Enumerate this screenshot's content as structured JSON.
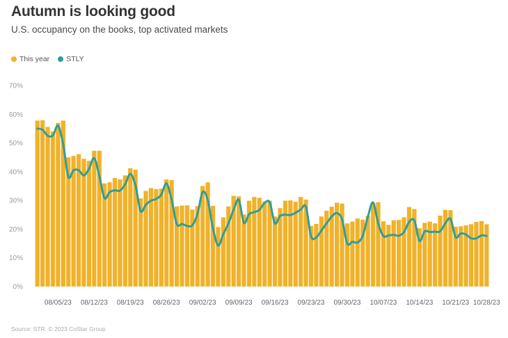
{
  "title": "Autumn is looking good",
  "subtitle": "U.S. occupancy on the books, top activated markets",
  "source": "Source: STR. © 2023 CoStar Group",
  "colors": {
    "this_year": "#F0B22A",
    "stly": "#2E9E9A"
  },
  "chart_data": {
    "type": "bar",
    "ylim": [
      0,
      70
    ],
    "yticks": [
      "0%",
      "10%",
      "20%",
      "30%",
      "40%",
      "50%",
      "60%",
      "70%"
    ],
    "xtick_labels": [
      "08/05/23",
      "08/12/23",
      "08/19/23",
      "08/26/23",
      "09/02/23",
      "09/09/23",
      "09/16/23",
      "09/23/23",
      "09/30/23",
      "10/07/23",
      "10/14/23",
      "10/21/23",
      "10/28/23"
    ],
    "legend_position": "top-left",
    "grid": false,
    "series": [
      {
        "name": "This year",
        "type": "bar",
        "values": [
          57.8,
          57.9,
          55.6,
          54.0,
          57.0,
          57.8,
          45.0,
          45.5,
          46.1,
          44.5,
          43.8,
          47.3,
          47.3,
          35.9,
          36.3,
          37.8,
          37.3,
          38.7,
          41.2,
          40.7,
          30.7,
          33.3,
          34.3,
          33.9,
          34.1,
          37.3,
          37.1,
          27.9,
          28.2,
          28.3,
          26.8,
          28.0,
          35.0,
          36.3,
          28.1,
          20.7,
          24.1,
          27.9,
          31.6,
          31.4,
          25.1,
          29.9,
          31.2,
          30.9,
          29.6,
          29.9,
          24.4,
          27.3,
          29.9,
          30.0,
          29.5,
          31.2,
          30.3,
          21.1,
          21.8,
          24.4,
          26.4,
          27.8,
          29.2,
          28.9,
          22.0,
          22.6,
          23.7,
          23.3,
          24.6,
          29.2,
          29.4,
          22.7,
          21.5,
          23.1,
          23.2,
          24.1,
          27.7,
          27.0,
          20.3,
          22.2,
          22.6,
          22.0,
          24.7,
          26.7,
          26.6,
          20.8,
          21.0,
          21.3,
          21.7,
          22.5,
          22.8,
          21.7
        ]
      },
      {
        "name": "STLY",
        "type": "line",
        "values": [
          55.0,
          54.6,
          52.5,
          52.6,
          56.0,
          49.6,
          38.2,
          40.5,
          40.5,
          38.7,
          41.0,
          44.7,
          38.5,
          30.8,
          32.9,
          33.5,
          33.4,
          35.6,
          39.2,
          35.2,
          26.3,
          28.5,
          29.9,
          30.5,
          32.0,
          35.9,
          30.2,
          21.7,
          21.8,
          21.1,
          21.3,
          25.2,
          32.9,
          30.1,
          20.3,
          14.3,
          18.2,
          22.0,
          26.7,
          30.2,
          22.2,
          25.2,
          25.9,
          26.7,
          29.1,
          29.3,
          22.0,
          24.6,
          25.0,
          24.9,
          25.7,
          26.8,
          27.8,
          17.5,
          17.1,
          19.5,
          22.0,
          24.4,
          25.6,
          23.4,
          15.0,
          15.6,
          15.3,
          17.6,
          24.3,
          29.3,
          22.0,
          17.6,
          17.8,
          18.0,
          17.7,
          19.0,
          22.5,
          23.0,
          15.9,
          19.2,
          19.0,
          19.1,
          19.2,
          22.0,
          23.6,
          17.2,
          18.5,
          18.1,
          16.8,
          16.8,
          17.8,
          17.6
        ]
      }
    ]
  }
}
